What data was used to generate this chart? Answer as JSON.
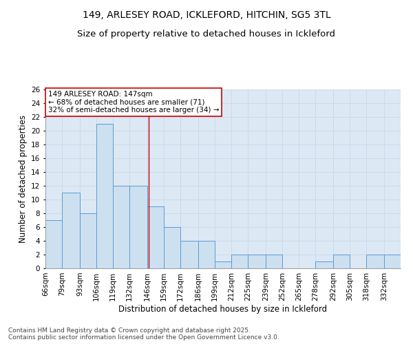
{
  "title1": "149, ARLESEY ROAD, ICKLEFORD, HITCHIN, SG5 3TL",
  "title2": "Size of property relative to detached houses in Ickleford",
  "xlabel": "Distribution of detached houses by size in Ickleford",
  "ylabel": "Number of detached properties",
  "footnote1": "Contains HM Land Registry data © Crown copyright and database right 2025.",
  "footnote2": "Contains public sector information licensed under the Open Government Licence v3.0.",
  "bins": [
    "66sqm",
    "79sqm",
    "93sqm",
    "106sqm",
    "119sqm",
    "132sqm",
    "146sqm",
    "159sqm",
    "172sqm",
    "186sqm",
    "199sqm",
    "212sqm",
    "225sqm",
    "239sqm",
    "252sqm",
    "265sqm",
    "278sqm",
    "292sqm",
    "305sqm",
    "318sqm",
    "332sqm"
  ],
  "bin_edges": [
    66,
    79,
    93,
    106,
    119,
    132,
    146,
    159,
    172,
    186,
    199,
    212,
    225,
    239,
    252,
    265,
    278,
    292,
    305,
    318,
    332,
    345
  ],
  "values": [
    7,
    11,
    8,
    21,
    12,
    12,
    9,
    6,
    4,
    4,
    1,
    2,
    2,
    2,
    0,
    0,
    1,
    2,
    0,
    2,
    2
  ],
  "bar_facecolor": "#cce0f0",
  "bar_edgecolor": "#5b9bd5",
  "bar_linewidth": 0.7,
  "grid_color": "#c8d8e8",
  "bg_color": "#dce8f4",
  "property_line_x": 147,
  "property_line_color": "#cc0000",
  "annotation_text": "149 ARLESEY ROAD: 147sqm\n← 68% of detached houses are smaller (71)\n32% of semi-detached houses are larger (34) →",
  "annotation_box_color": "#cc0000",
  "ylim": [
    0,
    26
  ],
  "yticks": [
    0,
    2,
    4,
    6,
    8,
    10,
    12,
    14,
    16,
    18,
    20,
    22,
    24,
    26
  ],
  "title_fontsize": 10,
  "subtitle_fontsize": 9.5,
  "axis_label_fontsize": 8.5,
  "tick_fontsize": 7.5,
  "annotation_fontsize": 7.5,
  "footnote_fontsize": 6.5
}
